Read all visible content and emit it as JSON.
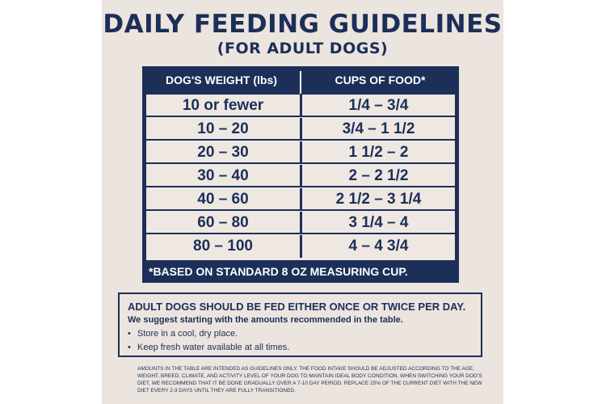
{
  "title": "DAILY FEEDING GUIDELINES",
  "subtitle": "(FOR ADULT DOGS)",
  "table": {
    "headers": [
      "DOG'S WEIGHT (lbs)",
      "CUPS OF FOOD*"
    ],
    "rows": [
      {
        "weight": "10 or fewer",
        "cups": "1/4 – 3/4"
      },
      {
        "weight": "10 – 20",
        "cups": "3/4 – 1 1/2"
      },
      {
        "weight": "20 – 30",
        "cups": "1 1/2 – 2"
      },
      {
        "weight": "30 – 40",
        "cups": "2 – 2 1/2"
      },
      {
        "weight": "40 – 60",
        "cups": "2 1/2 – 3 1/4"
      },
      {
        "weight": "60 – 80",
        "cups": "3 1/4 – 4"
      },
      {
        "weight": "80 – 100",
        "cups": "4 – 4 3/4"
      }
    ],
    "footnote": "*BASED ON STANDARD 8 OZ MEASURING CUP."
  },
  "info": {
    "heading": "ADULT DOGS SHOULD BE FED EITHER ONCE OR TWICE PER DAY.",
    "subheading": "We suggest starting with the amounts recommended in the table.",
    "bullets": [
      "Store in a cool, dry place.",
      "Keep fresh water available at all times."
    ]
  },
  "fine_print": "Amounts in the table are intended as guidelines only. The food intake should be adjusted according to the age, weight, breed, climate, and activity level of your dog to maintain ideal body condition. When switching your dog's diet, we recommend that it be done gradually over a 7-10 day period. Replace 25% of the current diet with the new diet every 2-3 days until they are fully transitioned.",
  "colors": {
    "navy": "#1c2f59",
    "background": "#ece4de"
  }
}
